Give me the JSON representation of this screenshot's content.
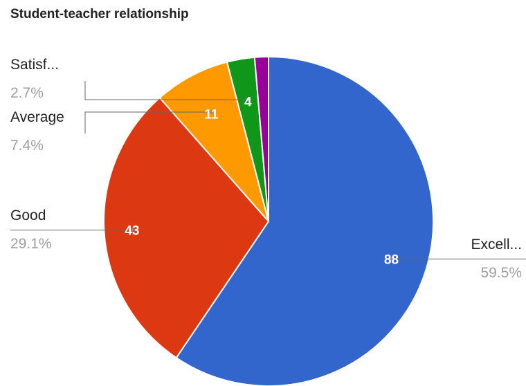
{
  "chart_data": {
    "type": "pie",
    "title": "Student-teacher relationship",
    "slices": [
      {
        "label": "Excell...",
        "value": 88,
        "value_label": "88",
        "percent_label": "59.5%",
        "color": "#3366cc"
      },
      {
        "label": "Good",
        "value": 43,
        "value_label": "43",
        "percent_label": "29.1%",
        "color": "#dc3912"
      },
      {
        "label": "Average",
        "value": 11,
        "value_label": "11",
        "percent_label": "7.4%",
        "color": "#ff9900"
      },
      {
        "label": "Satisf...",
        "value": 4,
        "value_label": "4",
        "percent_label": "2.7%",
        "color": "#109618"
      },
      {
        "label": "",
        "value": 2,
        "value_label": "",
        "percent_label": "",
        "color": "#990099"
      }
    ]
  }
}
